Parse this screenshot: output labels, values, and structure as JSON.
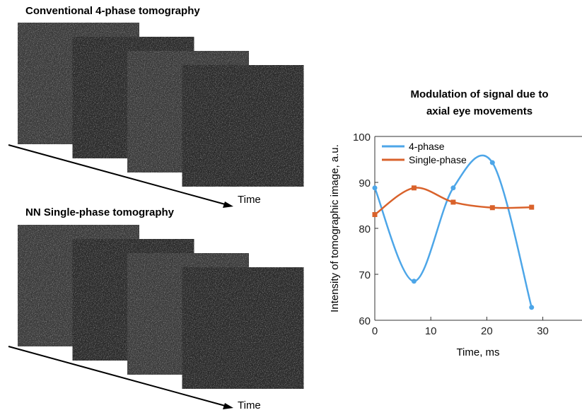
{
  "figure": {
    "panels": [
      {
        "title": "Conventional 4-phase tomography",
        "axis_label": "Time"
      },
      {
        "title": "NN Single-phase tomography",
        "axis_label": "Time"
      }
    ]
  },
  "chart_data": {
    "type": "line",
    "title": [
      "Modulation of signal due to",
      "axial eye movements"
    ],
    "x_label": "Time, ms",
    "y_label": "Intensity of tomographic image, a.u.",
    "x": [
      0,
      7,
      14,
      21,
      28
    ],
    "series": [
      {
        "name": "4-phase",
        "color": "#4da6e8",
        "values": [
          88.8,
          68.5,
          88.8,
          94.3,
          62.8
        ]
      },
      {
        "name": "Single-phase",
        "color": "#d9622b",
        "values": [
          83,
          88.8,
          85.7,
          84.5,
          84.6
        ]
      }
    ],
    "xlim": [
      0,
      37
    ],
    "xticks": [
      0,
      10,
      20,
      30
    ],
    "ylim": [
      60,
      100
    ],
    "yticks": [
      60,
      70,
      80,
      90,
      100
    ],
    "legend": "upper-left"
  }
}
